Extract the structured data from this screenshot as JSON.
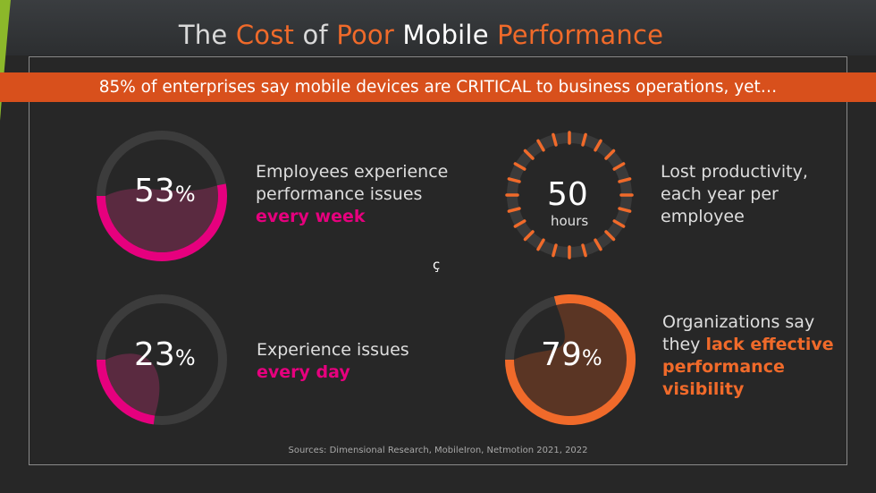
{
  "title": {
    "part1": "The",
    "part2": "Cost",
    "part3": "of",
    "part4": "Poor",
    "part5": "Mobile",
    "part6": "Performance"
  },
  "banner": "85% of enterprises say mobile devices are CRITICAL to business operations, yet…",
  "stats": {
    "weekly": {
      "value": "53",
      "unit": "%",
      "fraction": 0.53,
      "line1": "Employees experience",
      "line2": "performance issues",
      "emphasis": "every week"
    },
    "daily": {
      "value": "23",
      "unit": "%",
      "fraction": 0.23,
      "line1": "Experience issues",
      "emphasis": "every day"
    },
    "hours": {
      "value": "50",
      "unit": "hours",
      "line1": "Lost productivity,",
      "line2": "each year per",
      "line3": "employee"
    },
    "visibility": {
      "value": "79",
      "unit": "%",
      "fraction": 0.79,
      "line1": "Organizations say",
      "line2_plain": "they ",
      "line2_em": "lack effective",
      "line3_em": "performance",
      "line4_em": "visibility"
    }
  },
  "stray_glyph": "ç",
  "sources": "Sources: Dimensional Research, MobileIron, Netmotion 2021, 2022",
  "colors": {
    "pink": "#e6007e",
    "orange": "#f06a2a",
    "banner": "#d8501c",
    "ring": "#3c3c3c"
  },
  "chart_data": {
    "type": "pie",
    "series": [
      {
        "value": 53,
        "unit": "%",
        "label": "Employees experience performance issues every week"
      },
      {
        "value": 23,
        "unit": "%",
        "label": "Experience issues every day"
      },
      {
        "value": 50,
        "unit": "hours",
        "label": "Lost productivity, each year per employee"
      },
      {
        "value": 79,
        "unit": "%",
        "label": "Organizations say they lack effective performance visibility"
      }
    ]
  }
}
